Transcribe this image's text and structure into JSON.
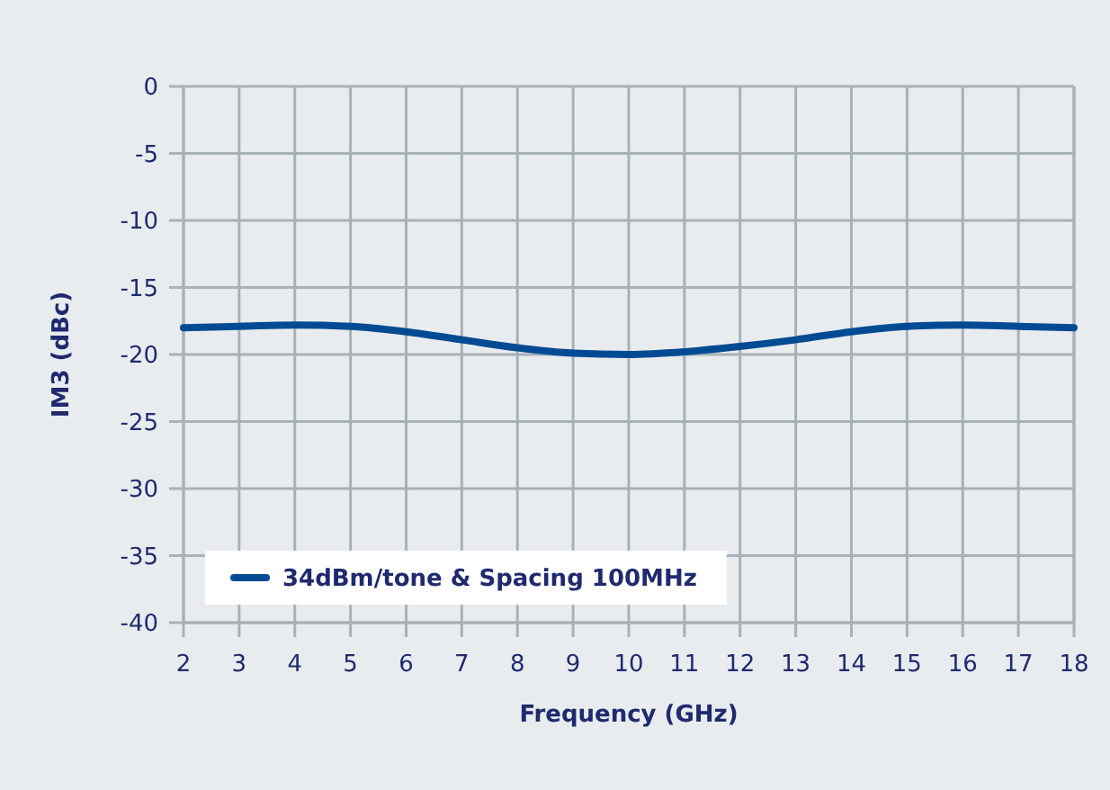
{
  "chart_data": {
    "type": "line",
    "xlabel": "Frequency (GHz)",
    "ylabel": "IM3 (dBc)",
    "x": [
      2,
      3,
      4,
      5,
      6,
      7,
      8,
      9,
      10,
      11,
      12,
      13,
      14,
      15,
      16,
      17,
      18
    ],
    "series": [
      {
        "name": "34dBm/tone & Spacing 100MHz",
        "color": "#004b93",
        "values": [
          -18,
          -17.9,
          -17.8,
          -17.9,
          -18.3,
          -18.9,
          -19.5,
          -19.9,
          -20,
          -19.8,
          -19.4,
          -18.9,
          -18.3,
          -17.9,
          -17.8,
          -17.9,
          -18
        ]
      }
    ],
    "xlim": [
      2,
      18
    ],
    "xticks": [
      2,
      3,
      4,
      5,
      6,
      7,
      8,
      9,
      10,
      11,
      12,
      13,
      14,
      15,
      16,
      17,
      18
    ],
    "ylim": [
      -40,
      0
    ],
    "yticks": [
      0,
      -5,
      -10,
      -15,
      -20,
      -25,
      -30,
      -35,
      -40
    ],
    "grid": true,
    "legend": "bottom left",
    "marker": "none",
    "line_style": "solid"
  }
}
